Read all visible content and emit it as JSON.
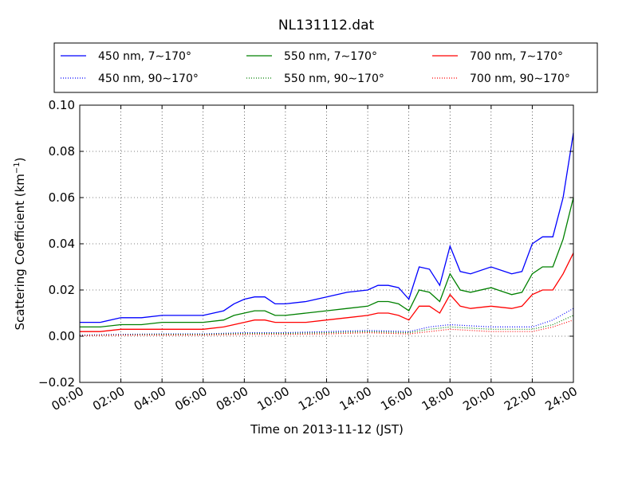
{
  "chart_data": {
    "type": "line",
    "title": "NL131112.dat",
    "xlabel": "Time on 2013-11-12 (JST)",
    "ylabel_main": "Scattering Coefficient (km",
    "ylabel_sup": "−1",
    "ylabel_close": ")",
    "xlim": [
      "00:00",
      "24:00"
    ],
    "ylim": [
      -0.02,
      0.1
    ],
    "grid": true,
    "legend_position": "top",
    "x_ticks": [
      "00:00",
      "02:00",
      "04:00",
      "06:00",
      "08:00",
      "10:00",
      "12:00",
      "14:00",
      "16:00",
      "18:00",
      "20:00",
      "22:00",
      "24:00"
    ],
    "y_ticks": [
      "−0.02",
      "0.00",
      "0.02",
      "0.04",
      "0.06",
      "0.08",
      "0.10"
    ],
    "series": [
      {
        "name": "450 nm, 7∼170°",
        "color": "#0000ff",
        "style": "solid",
        "x": [
          "00:00",
          "01:00",
          "02:00",
          "03:00",
          "04:00",
          "05:00",
          "06:00",
          "07:00",
          "07:30",
          "08:00",
          "08:30",
          "09:00",
          "09:30",
          "10:00",
          "11:00",
          "12:00",
          "13:00",
          "14:00",
          "14:30",
          "15:00",
          "15:30",
          "16:00",
          "16:30",
          "17:00",
          "17:30",
          "18:00",
          "18:30",
          "19:00",
          "20:00",
          "21:00",
          "21:30",
          "22:00",
          "22:30",
          "23:00",
          "23:30",
          "24:00"
        ],
        "values": [
          0.006,
          0.006,
          0.008,
          0.008,
          0.009,
          0.009,
          0.009,
          0.011,
          0.014,
          0.016,
          0.017,
          0.017,
          0.014,
          0.014,
          0.015,
          0.017,
          0.019,
          0.02,
          0.022,
          0.022,
          0.021,
          0.016,
          0.03,
          0.029,
          0.022,
          0.039,
          0.028,
          0.027,
          0.03,
          0.027,
          0.028,
          0.04,
          0.043,
          0.043,
          0.06,
          0.088
        ]
      },
      {
        "name": "550 nm, 7∼170°",
        "color": "#008000",
        "style": "solid",
        "x": [
          "00:00",
          "01:00",
          "02:00",
          "03:00",
          "04:00",
          "05:00",
          "06:00",
          "07:00",
          "07:30",
          "08:00",
          "08:30",
          "09:00",
          "09:30",
          "10:00",
          "11:00",
          "12:00",
          "13:00",
          "14:00",
          "14:30",
          "15:00",
          "15:30",
          "16:00",
          "16:30",
          "17:00",
          "17:30",
          "18:00",
          "18:30",
          "19:00",
          "20:00",
          "21:00",
          "21:30",
          "22:00",
          "22:30",
          "23:00",
          "23:30",
          "24:00"
        ],
        "values": [
          0.004,
          0.004,
          0.005,
          0.005,
          0.006,
          0.006,
          0.006,
          0.007,
          0.009,
          0.01,
          0.011,
          0.011,
          0.009,
          0.009,
          0.01,
          0.011,
          0.012,
          0.013,
          0.015,
          0.015,
          0.014,
          0.011,
          0.02,
          0.019,
          0.015,
          0.027,
          0.02,
          0.019,
          0.021,
          0.018,
          0.019,
          0.027,
          0.03,
          0.03,
          0.042,
          0.06
        ]
      },
      {
        "name": "700 nm, 7∼170°",
        "color": "#ff0000",
        "style": "solid",
        "x": [
          "00:00",
          "01:00",
          "02:00",
          "03:00",
          "04:00",
          "05:00",
          "06:00",
          "07:00",
          "07:30",
          "08:00",
          "08:30",
          "09:00",
          "09:30",
          "10:00",
          "11:00",
          "12:00",
          "13:00",
          "14:00",
          "14:30",
          "15:00",
          "15:30",
          "16:00",
          "16:30",
          "17:00",
          "17:30",
          "18:00",
          "18:30",
          "19:00",
          "20:00",
          "21:00",
          "21:30",
          "22:00",
          "22:30",
          "23:00",
          "23:30",
          "24:00"
        ],
        "values": [
          0.002,
          0.002,
          0.003,
          0.003,
          0.003,
          0.003,
          0.003,
          0.004,
          0.005,
          0.006,
          0.007,
          0.007,
          0.006,
          0.006,
          0.006,
          0.007,
          0.008,
          0.009,
          0.01,
          0.01,
          0.009,
          0.007,
          0.013,
          0.013,
          0.01,
          0.018,
          0.013,
          0.012,
          0.013,
          0.012,
          0.013,
          0.018,
          0.02,
          0.02,
          0.027,
          0.036
        ]
      },
      {
        "name": "450 nm, 90∼170°",
        "color": "#0000ff",
        "style": "dotted",
        "x": [
          "00:00",
          "02:00",
          "04:00",
          "06:00",
          "08:00",
          "10:00",
          "12:00",
          "14:00",
          "16:00",
          "17:00",
          "18:00",
          "20:00",
          "22:00",
          "23:00",
          "24:00"
        ],
        "values": [
          0.0005,
          0.0008,
          0.001,
          0.001,
          0.0015,
          0.0015,
          0.002,
          0.0025,
          0.002,
          0.004,
          0.005,
          0.004,
          0.004,
          0.007,
          0.012
        ]
      },
      {
        "name": "550 nm, 90∼170°",
        "color": "#008000",
        "style": "dotted",
        "x": [
          "00:00",
          "02:00",
          "04:00",
          "06:00",
          "08:00",
          "10:00",
          "12:00",
          "14:00",
          "16:00",
          "17:00",
          "18:00",
          "20:00",
          "22:00",
          "23:00",
          "24:00"
        ],
        "values": [
          0.0003,
          0.0006,
          0.0008,
          0.0008,
          0.0012,
          0.0012,
          0.0015,
          0.002,
          0.0015,
          0.003,
          0.004,
          0.003,
          0.003,
          0.005,
          0.009
        ]
      },
      {
        "name": "700 nm, 90∼170°",
        "color": "#ff0000",
        "style": "dotted",
        "x": [
          "00:00",
          "02:00",
          "04:00",
          "06:00",
          "08:00",
          "10:00",
          "12:00",
          "14:00",
          "16:00",
          "17:00",
          "18:00",
          "20:00",
          "22:00",
          "23:00",
          "24:00"
        ],
        "values": [
          0.0002,
          0.0004,
          0.0005,
          0.0005,
          0.0008,
          0.0008,
          0.001,
          0.0015,
          0.001,
          0.002,
          0.003,
          0.002,
          0.002,
          0.004,
          0.007
        ]
      }
    ]
  }
}
